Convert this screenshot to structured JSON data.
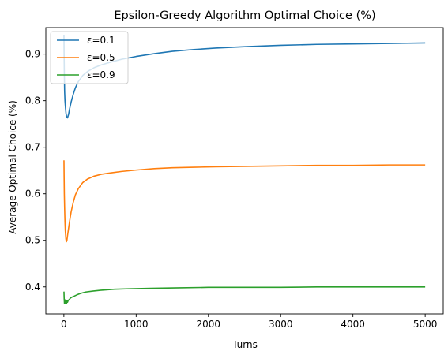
{
  "chart_data": {
    "type": "line",
    "title": "Epsilon-Greedy Algorithm Optimal Choice (%)",
    "xlabel": "Turns",
    "ylabel": "Average Optimal Choice (%)",
    "xlim": [
      -250,
      5250
    ],
    "ylim": [
      0.342,
      0.957
    ],
    "xticks": [
      0,
      1000,
      2000,
      3000,
      4000,
      5000
    ],
    "yticks": [
      0.4,
      0.5,
      0.6,
      0.7,
      0.8,
      0.9
    ],
    "grid": false,
    "legend_position": "top-left",
    "series": [
      {
        "name": "ε=0.1",
        "color": "#1f77b4",
        "x": [
          1,
          3,
          6,
          10,
          15,
          22,
          30,
          40,
          50,
          65,
          80,
          100,
          130,
          160,
          200,
          260,
          330,
          420,
          520,
          650,
          800,
          1000,
          1250,
          1500,
          1800,
          2100,
          2500,
          3000,
          3500,
          4000,
          4500,
          5000
        ],
        "y": [
          0.94,
          0.9,
          0.86,
          0.82,
          0.8,
          0.785,
          0.772,
          0.764,
          0.763,
          0.771,
          0.783,
          0.797,
          0.814,
          0.828,
          0.841,
          0.854,
          0.863,
          0.871,
          0.877,
          0.883,
          0.889,
          0.895,
          0.901,
          0.906,
          0.91,
          0.913,
          0.916,
          0.919,
          0.921,
          0.922,
          0.923,
          0.924
        ]
      },
      {
        "name": "ε=0.5",
        "color": "#ff7f0e",
        "x": [
          1,
          3,
          6,
          10,
          15,
          20,
          28,
          35,
          42,
          50,
          65,
          80,
          100,
          130,
          160,
          200,
          260,
          330,
          420,
          520,
          650,
          800,
          1000,
          1250,
          1500,
          1800,
          2100,
          2500,
          3000,
          3500,
          4000,
          4500,
          5000
        ],
        "y": [
          0.672,
          0.64,
          0.6,
          0.57,
          0.54,
          0.52,
          0.503,
          0.497,
          0.5,
          0.51,
          0.526,
          0.542,
          0.561,
          0.582,
          0.598,
          0.611,
          0.624,
          0.632,
          0.638,
          0.642,
          0.645,
          0.648,
          0.651,
          0.654,
          0.656,
          0.657,
          0.658,
          0.659,
          0.66,
          0.661,
          0.661,
          0.662,
          0.662
        ]
      },
      {
        "name": "ε=0.9",
        "color": "#2ca02c",
        "x": [
          1,
          4,
          8,
          12,
          16,
          20,
          25,
          30,
          36,
          42,
          50,
          60,
          75,
          90,
          110,
          140,
          180,
          230,
          300,
          400,
          520,
          700,
          900,
          1200,
          1600,
          2000,
          2500,
          3000,
          3500,
          4000,
          4500,
          5000
        ],
        "y": [
          0.39,
          0.375,
          0.364,
          0.37,
          0.366,
          0.372,
          0.365,
          0.368,
          0.364,
          0.37,
          0.367,
          0.371,
          0.373,
          0.376,
          0.378,
          0.38,
          0.383,
          0.386,
          0.389,
          0.391,
          0.393,
          0.395,
          0.396,
          0.397,
          0.398,
          0.399,
          0.399,
          0.399,
          0.4,
          0.4,
          0.4,
          0.4
        ]
      }
    ]
  }
}
